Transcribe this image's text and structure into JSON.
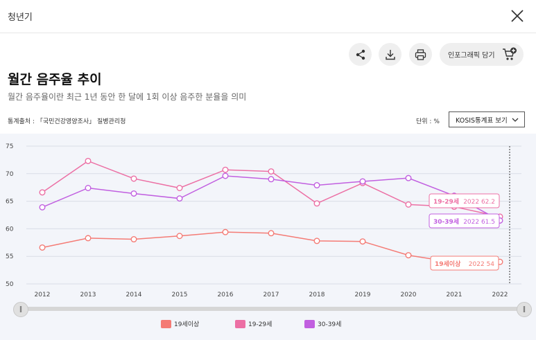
{
  "window": {
    "title": "청년기"
  },
  "toolbar": {
    "infographic_label": "인포그래픽 담기"
  },
  "header": {
    "title": "월간 음주율 추이",
    "subtitle": "월간 음주율이란 최근 1년 동안 한 달에 1회 이상 음주한 분율을 의미",
    "source": "통계출처 : 「국민건강영양조사」 질병관리청",
    "unit": "단위 : %",
    "kosis_button": "KOSIS통계표 보기"
  },
  "colors": {
    "s19plus": "#f47b75",
    "s19_29": "#ec6fa4",
    "s30_39": "#c15fe0",
    "grid": "#d9dde6",
    "background": "#f3f5fa"
  },
  "icons": [
    "close-icon",
    "share-icon",
    "download-icon",
    "print-icon",
    "cart-plus-icon",
    "chevron-down-icon"
  ],
  "chart_data": {
    "type": "line",
    "categories": [
      "2012",
      "2013",
      "2014",
      "2015",
      "2016",
      "2017",
      "2018",
      "2019",
      "2020",
      "2021",
      "2022"
    ],
    "ylim": [
      50,
      75
    ],
    "yticks": [
      "50",
      "55",
      "60",
      "65",
      "70",
      "75"
    ],
    "grid": true,
    "legend": "bottom",
    "series": [
      {
        "name": "19세이상",
        "values": [
          56.6,
          58.3,
          58.1,
          58.7,
          59.4,
          59.2,
          57.8,
          57.7,
          55.2,
          53.9,
          54
        ]
      },
      {
        "name": "19-29세",
        "values": [
          66.6,
          72.3,
          69.1,
          67.4,
          70.7,
          70.4,
          64.6,
          68.3,
          64.4,
          64.0,
          62.2
        ]
      },
      {
        "name": "30-39세",
        "values": [
          63.9,
          67.4,
          66.4,
          65.5,
          69.6,
          69.0,
          67.9,
          68.6,
          69.2,
          66.0,
          61.5
        ]
      }
    ],
    "tooltips": [
      {
        "series": "19-29세",
        "year": "2022",
        "value": "62.2"
      },
      {
        "series": "30-39세",
        "year": "2022",
        "value": "61.5"
      },
      {
        "series": "19세이상",
        "year": "2022",
        "value": "54"
      }
    ]
  }
}
